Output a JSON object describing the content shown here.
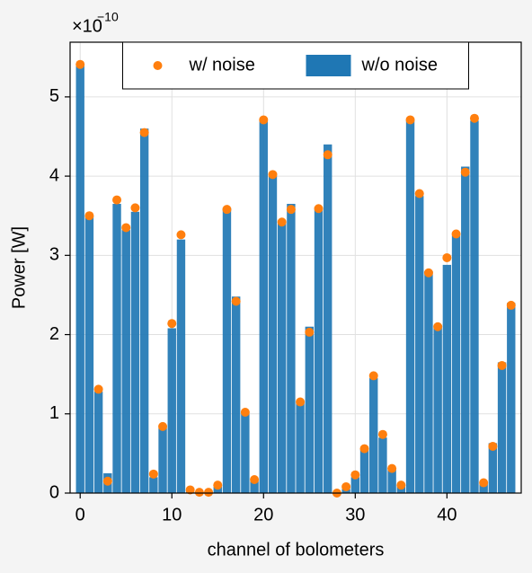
{
  "chart_data": {
    "type": "bar",
    "xlabel": "channel of bolometers",
    "ylabel": "Power [W]",
    "offset_text": "×10",
    "offset_exponent": "−10",
    "x": [
      0,
      1,
      2,
      3,
      4,
      5,
      6,
      7,
      8,
      9,
      10,
      11,
      12,
      13,
      14,
      15,
      16,
      17,
      18,
      19,
      20,
      21,
      22,
      23,
      24,
      25,
      26,
      27,
      28,
      29,
      30,
      31,
      32,
      33,
      34,
      35,
      36,
      37,
      38,
      39,
      40,
      41,
      42,
      43,
      44,
      45,
      46,
      47
    ],
    "series": [
      {
        "name": "w/ noise",
        "type": "scatter",
        "color": "#ff7f0e",
        "values": [
          5.41,
          3.5,
          1.31,
          0.15,
          3.7,
          3.35,
          3.6,
          4.55,
          0.24,
          0.84,
          2.14,
          3.26,
          0.04,
          0.01,
          0.01,
          0.1,
          3.58,
          2.42,
          1.02,
          0.17,
          4.71,
          4.02,
          3.42,
          3.58,
          1.15,
          2.03,
          3.59,
          4.27,
          0.0,
          0.08,
          0.23,
          0.56,
          1.48,
          0.74,
          0.31,
          0.1,
          4.71,
          3.78,
          2.78,
          2.1,
          2.97,
          3.27,
          4.05,
          4.73,
          0.13,
          0.59,
          1.61,
          2.37
        ]
      },
      {
        "name": "w/o noise",
        "type": "bar",
        "color": "#1f77b4",
        "values": [
          5.4,
          3.5,
          1.28,
          0.25,
          3.65,
          3.32,
          3.55,
          4.6,
          0.2,
          0.82,
          2.08,
          3.2,
          0.04,
          0.02,
          0.03,
          0.08,
          3.6,
          2.48,
          1.0,
          0.15,
          4.7,
          4.0,
          3.42,
          3.65,
          1.15,
          2.1,
          3.6,
          4.4,
          0.0,
          0.05,
          0.2,
          0.55,
          1.45,
          0.7,
          0.3,
          0.1,
          4.7,
          3.75,
          2.8,
          2.1,
          2.88,
          3.25,
          4.12,
          4.7,
          0.12,
          0.63,
          1.65,
          2.4
        ]
      }
    ],
    "xlim": [
      -1.1,
      48.1
    ],
    "ylim": [
      0,
      5.69
    ],
    "xticks": [
      0,
      10,
      20,
      30,
      40
    ],
    "yticks": [
      0,
      1,
      2,
      3,
      4,
      5
    ],
    "grid": true,
    "legend": "upper center"
  }
}
